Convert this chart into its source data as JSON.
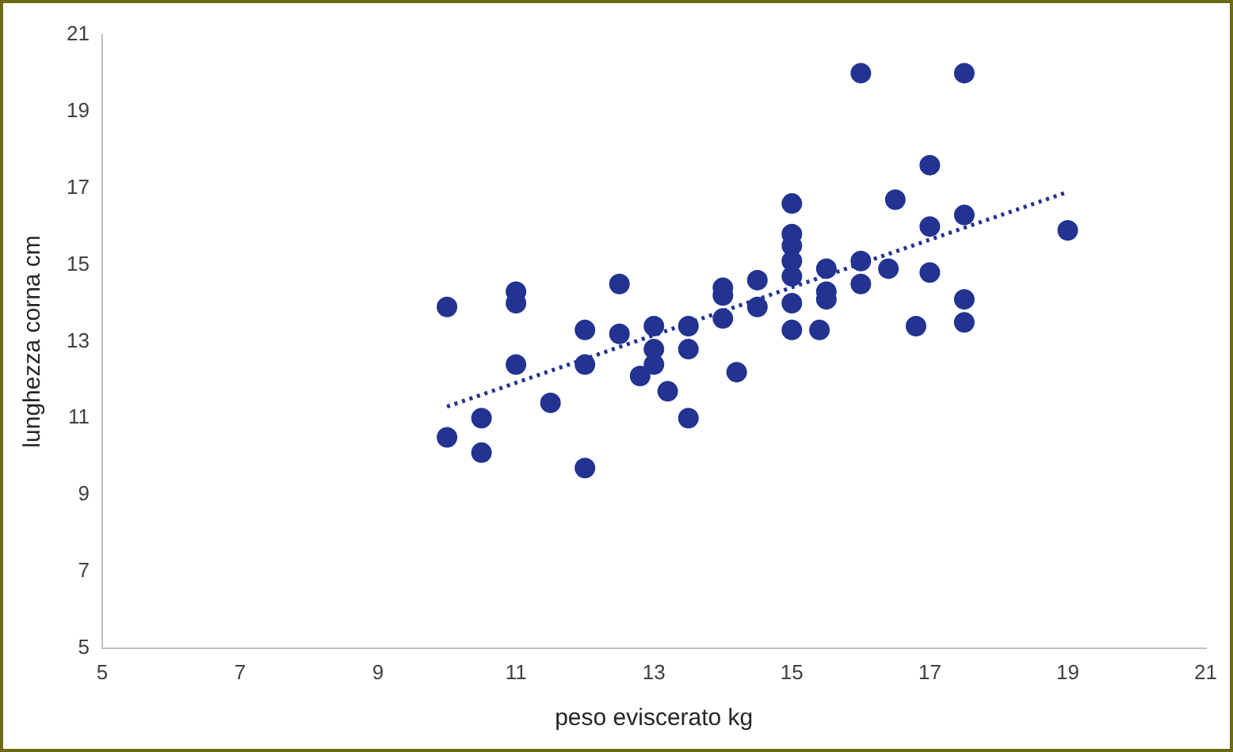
{
  "chart_data": {
    "type": "scatter",
    "xlabel": "peso eviscerato kg",
    "ylabel": "lunghezza corna cm",
    "x": [
      10,
      10,
      10.5,
      10.5,
      11,
      11,
      11,
      11.5,
      12,
      12,
      12,
      12.5,
      12.5,
      12.8,
      13,
      13,
      13,
      13.2,
      13.5,
      13.5,
      13.5,
      14,
      14,
      14,
      14.2,
      14.5,
      14.5,
      15,
      15,
      15,
      15,
      15,
      15,
      15,
      15.4,
      15.5,
      15.5,
      15.5,
      16,
      16,
      16,
      16.4,
      16.5,
      16.8,
      17,
      17,
      17,
      17.5,
      17.5,
      17.5,
      17.5,
      19
    ],
    "series": [
      {
        "type": "scatter",
        "color": "#233391",
        "values": [
          13.9,
          10.5,
          11.0,
          10.1,
          14.3,
          14.0,
          12.4,
          11.4,
          13.3,
          12.4,
          9.7,
          14.5,
          13.2,
          12.1,
          13.4,
          12.8,
          12.4,
          11.7,
          13.4,
          12.8,
          11.0,
          14.4,
          14.2,
          13.6,
          12.2,
          14.6,
          13.9,
          16.6,
          15.8,
          15.5,
          15.1,
          14.7,
          14.0,
          13.3,
          13.3,
          14.9,
          14.3,
          14.1,
          20.0,
          15.1,
          14.5,
          14.9,
          16.7,
          13.4,
          17.6,
          16.0,
          14.8,
          20.0,
          16.3,
          14.1,
          13.5,
          15.9
        ]
      },
      {
        "type": "line",
        "color": "#233391",
        "x": [
          10,
          19
        ],
        "values": [
          11.3,
          16.9
        ],
        "line_style": "dotted",
        "marker": "none"
      }
    ],
    "xlim": [
      5,
      21
    ],
    "xticks": [
      5,
      7,
      9,
      11,
      13,
      15,
      17,
      19,
      21
    ],
    "ylim": [
      5,
      21
    ],
    "yticks": [
      5,
      7,
      9,
      11,
      13,
      15,
      17,
      19,
      21
    ],
    "marker": "circle",
    "grid": false,
    "legend": false
  }
}
